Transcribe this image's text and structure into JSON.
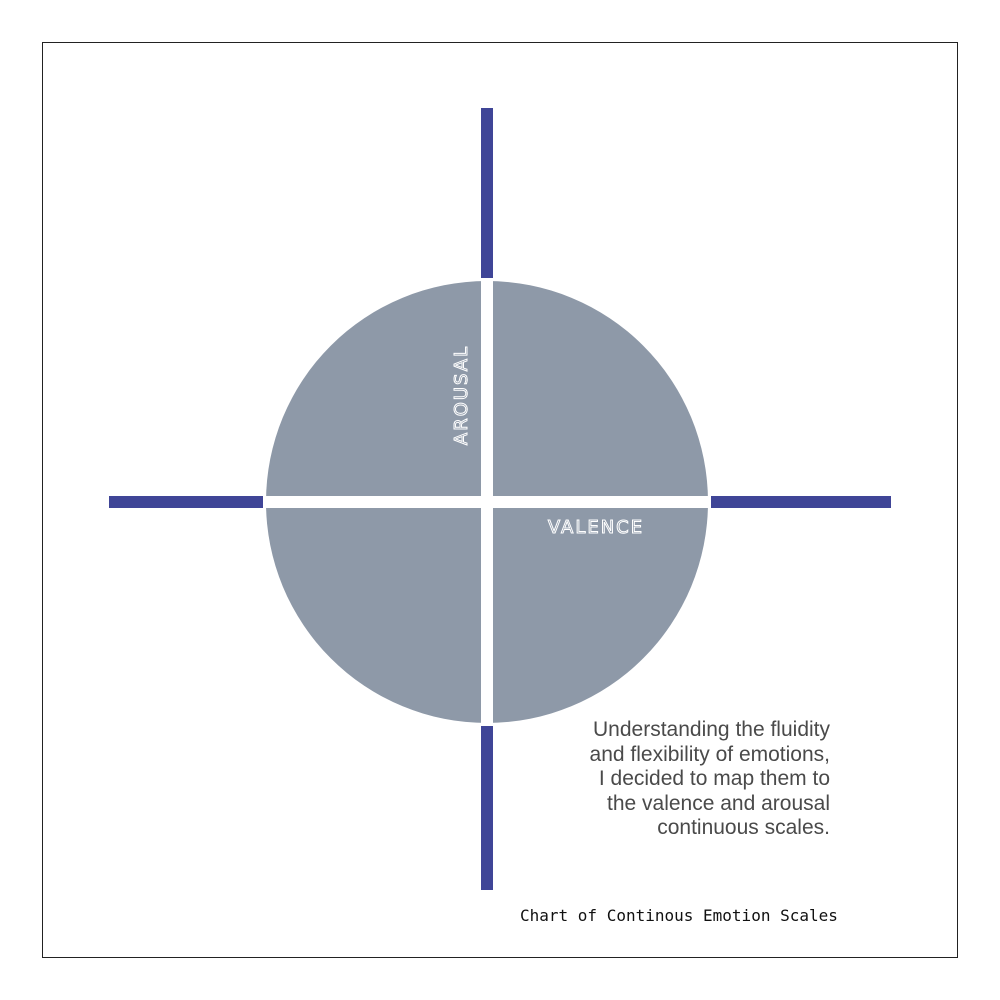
{
  "axes": {
    "vertical_label": "AROUSAL",
    "horizontal_label": "VALENCE"
  },
  "caption": {
    "lines": [
      "Understanding the fluidity",
      "and flexibility of emotions,",
      "I decided to map them to",
      "the valence and arousal",
      "continuous scales."
    ]
  },
  "title": "Chart of Continous Emotion Scales",
  "colors": {
    "axis": "#3f4597",
    "circle": "#8e99a8",
    "axis_label": "#ffffff",
    "border": "#222222"
  }
}
